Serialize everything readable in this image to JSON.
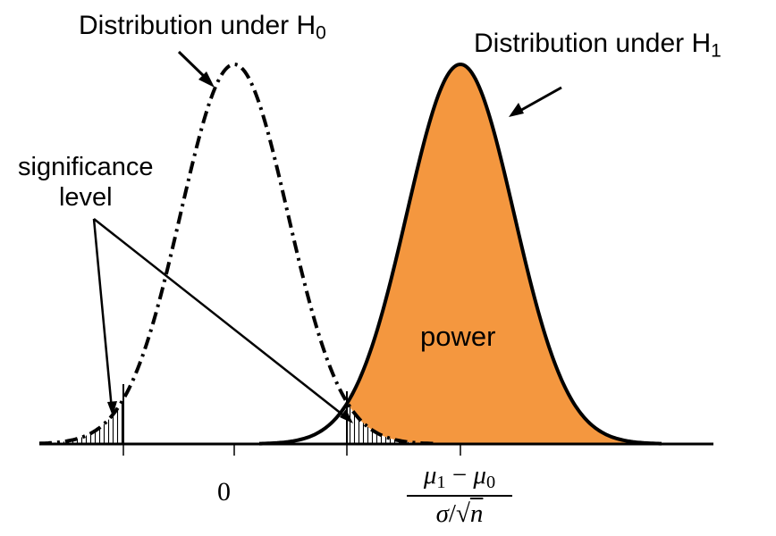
{
  "labels": {
    "h0_text": "Distribution under H",
    "h0_sub": "0",
    "h1_text": "Distribution under H",
    "h1_sub": "1",
    "sig_line1": "significance",
    "sig_line2": "level",
    "power": "power",
    "zero": "0",
    "frac_num_a": "μ",
    "frac_num_a_sub": "1",
    "frac_minus": " − ",
    "frac_num_b": "μ",
    "frac_num_b_sub": "0",
    "frac_den_a": "σ",
    "frac_den_sep": "/",
    "frac_den_root": "√",
    "frac_den_n": "n"
  },
  "colors": {
    "power_fill": "#F4973F",
    "curve": "#000000",
    "axis": "#000000"
  }
}
